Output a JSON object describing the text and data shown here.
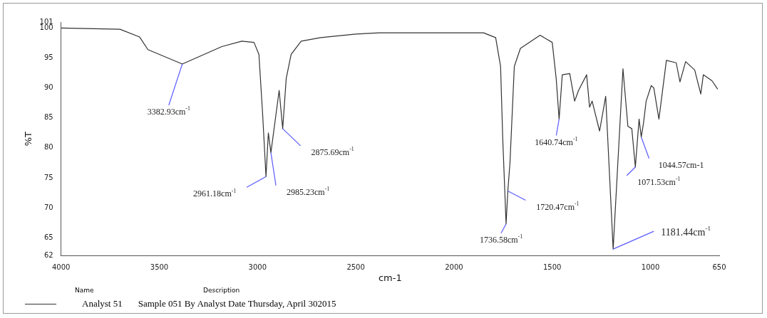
{
  "chart_data": {
    "type": "line",
    "xlabel": "cm-1",
    "ylabel": "%T",
    "xlim": [
      4000,
      650
    ],
    "xticks": [
      4000,
      3500,
      3000,
      2500,
      2000,
      1500,
      1000,
      650
    ],
    "ylim": [
      62,
      101
    ],
    "yticks": [
      62,
      65,
      70,
      75,
      80,
      85,
      90,
      95,
      100,
      101
    ],
    "grid": false,
    "legend": "bottom",
    "series": [
      {
        "name": "Analyst 51",
        "color": "#333333",
        "x": [
          4000,
          3700,
          3600,
          3558,
          3383,
          3182,
          3080,
          3018,
          2993,
          2974,
          2957,
          2945,
          2932,
          2890,
          2872,
          2854,
          2829,
          2778,
          2679,
          2500,
          2380,
          1850,
          1788,
          1763,
          1752,
          1735,
          1726,
          1715,
          1693,
          1662,
          1562,
          1500,
          1480,
          1465,
          1449,
          1411,
          1386,
          1366,
          1325,
          1310,
          1297,
          1259,
          1228,
          1190,
          1140,
          1115,
          1095,
          1077,
          1058,
          1047,
          1036,
          1022,
          996,
          983,
          957,
          919,
          869,
          850,
          821,
          775,
          744,
          731,
          687,
          658
        ],
        "values": [
          100,
          99.8,
          98.5,
          96.4,
          94.0,
          96.9,
          97.8,
          97.6,
          95.6,
          85.6,
          75.2,
          82.5,
          79.2,
          89.6,
          83.2,
          91.6,
          95.6,
          97.8,
          98.4,
          99.0,
          99.2,
          99.2,
          98.4,
          93.6,
          81.6,
          67.3,
          72.8,
          77.6,
          93.6,
          96.6,
          98.8,
          97.6,
          91.6,
          84.8,
          92.2,
          92.4,
          87.8,
          89.6,
          92.2,
          86.8,
          87.8,
          82.8,
          88.6,
          63.1,
          93.2,
          83.6,
          83.2,
          76.8,
          84.8,
          81.8,
          84.0,
          87.8,
          90.4,
          90.0,
          84.8,
          94.6,
          94.2,
          91.0,
          94.4,
          93.0,
          89.0,
          92.2,
          91.2,
          89.8
        ]
      }
    ],
    "annotations": [
      {
        "text": "3382.93cm$^{-1}$",
        "x": 3383,
        "y": 94.0
      },
      {
        "text": "2961.18cm$^{-1}$",
        "x": 2957,
        "y": 75.2
      },
      {
        "text": "2985.23cm$^{-1}$",
        "x": 2932,
        "y": 79.2
      },
      {
        "text": "2875.69cm$^{-1}$",
        "x": 2872,
        "y": 83.2
      },
      {
        "text": "1736.58cm$^{-1}$",
        "x": 1735,
        "y": 67.3
      },
      {
        "text": "1720.47cm$^{-1}$",
        "x": 1726,
        "y": 72.8
      },
      {
        "text": "1640.74cm$^{-1}$",
        "x": 1465,
        "y": 84.8
      },
      {
        "text": "1071.53cm$^{-1}$",
        "x": 1077,
        "y": 76.8
      },
      {
        "text": "1044.57cm-1",
        "x": 1047,
        "y": 81.8
      },
      {
        "text": "1181.44cm$^{-1}$",
        "x": 1190,
        "y": 63.1
      },
      "Name",
      "Description",
      "Sample 051 By Analyst Date Thursday, April 302015"
    ]
  }
}
